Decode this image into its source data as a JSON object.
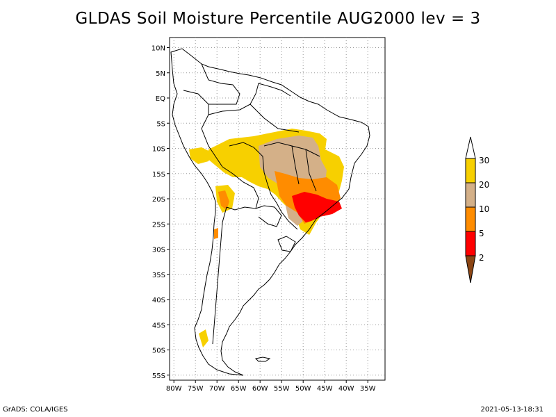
{
  "title": "GLDAS Soil Moisture Percentile AUG2000 lev = 3",
  "footer": {
    "left": "GrADS: COLA/IGES",
    "right": "2021-05-13-18:31"
  },
  "axes": {
    "lat_labels": [
      "10N",
      "5N",
      "EQ",
      "5S",
      "10S",
      "15S",
      "20S",
      "25S",
      "30S",
      "35S",
      "40S",
      "45S",
      "50S",
      "55S"
    ],
    "lat_values": [
      10,
      5,
      0,
      -5,
      -10,
      -15,
      -20,
      -25,
      -30,
      -35,
      -40,
      -45,
      -50,
      -55
    ],
    "lon_labels": [
      "80W",
      "75W",
      "70W",
      "65W",
      "60W",
      "55W",
      "50W",
      "45W",
      "40W",
      "35W"
    ],
    "lon_values": [
      -80,
      -75,
      -70,
      -65,
      -60,
      -55,
      -50,
      -45,
      -40,
      -35
    ],
    "lon_range": [
      -81,
      -31
    ],
    "lat_range": [
      -56,
      12
    ],
    "grid": "dotted"
  },
  "legend": {
    "labels": [
      "30",
      "20",
      "10",
      "5",
      "2"
    ],
    "colors": {
      "gt30": "#ffffff",
      "20_30": "#f7d000",
      "10_20": "#d4b088",
      "5_10": "#ff8c00",
      "2_5": "#ff0000",
      "lt2": "#8b4513"
    }
  },
  "colors": {
    "coast": "#000000",
    "grid": "#9a9a9a"
  }
}
